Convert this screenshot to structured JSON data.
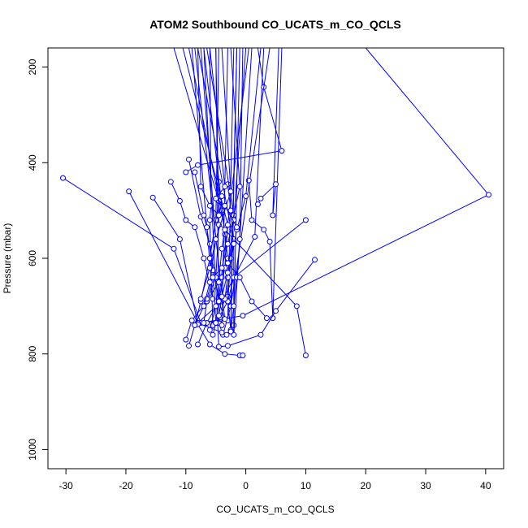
{
  "chart_data": {
    "type": "line",
    "title": "ATOM2 Southbound CO_UCATS_m_CO_QCLS",
    "xlabel": "CO_UCATS_m_CO_QCLS",
    "ylabel": "Pressure (mbar)",
    "xlim": [
      -33,
      43
    ],
    "ylim": [
      1040,
      160
    ],
    "y_reversed": true,
    "x_ticks": [
      -30,
      -20,
      -10,
      0,
      10,
      20,
      30,
      40
    ],
    "y_ticks": [
      200,
      400,
      600,
      800,
      1000
    ],
    "grid": false,
    "color": "#0000ff",
    "series": [
      {
        "values": [
          [
            -5.0,
            160
          ],
          [
            -4.5,
            735
          ],
          [
            -3.8,
            760
          ],
          [
            -2.5,
            700
          ],
          [
            -1.5,
            160
          ]
        ]
      },
      {
        "values": [
          [
            3.0,
            160
          ],
          [
            1.5,
            555
          ],
          [
            -4.0,
            690
          ],
          [
            -8.0,
            735
          ],
          [
            -3.0,
            730
          ],
          [
            -2.0,
            160
          ]
        ]
      },
      {
        "values": [
          [
            -6.0,
            160
          ],
          [
            -5.8,
            490
          ],
          [
            -6.0,
            520
          ],
          [
            -5.5,
            740
          ],
          [
            -4.0,
            740
          ],
          [
            -3.0,
            160
          ]
        ]
      },
      {
        "values": [
          [
            -30.5,
            432
          ],
          [
            -12.0,
            580
          ],
          [
            -7.5,
            735
          ],
          [
            -0.5,
            720
          ],
          [
            40.5,
            467
          ],
          [
            20.0,
            160
          ]
        ]
      },
      {
        "values": [
          [
            -19.5,
            460
          ],
          [
            -8.0,
            735
          ],
          [
            -4.0,
            755
          ],
          [
            -3.2,
            760
          ],
          [
            -2.0,
            740
          ],
          [
            -1.0,
            160
          ]
        ]
      },
      {
        "values": [
          [
            -15.5,
            473
          ],
          [
            -11.0,
            560
          ],
          [
            -8.0,
            738
          ],
          [
            -6.0,
            780
          ],
          [
            -3.5,
            800
          ],
          [
            -1.0,
            803
          ],
          [
            -0.5,
            803
          ]
        ]
      },
      {
        "values": [
          [
            -12.5,
            440
          ],
          [
            -11.0,
            480
          ],
          [
            -10.0,
            520
          ],
          [
            -8.5,
            535
          ],
          [
            -7.0,
            600
          ],
          [
            -5.5,
            685
          ],
          [
            -9.0,
            160
          ]
        ]
      },
      {
        "values": [
          [
            -10.0,
            420
          ],
          [
            -8.0,
            405
          ],
          [
            6.0,
            375
          ],
          [
            3.0,
            242
          ],
          [
            2.0,
            160
          ]
        ]
      },
      {
        "values": [
          [
            -9.5,
            393
          ],
          [
            -7.5,
            513
          ],
          [
            -6.0,
            570
          ],
          [
            -4.5,
            690
          ],
          [
            -3.5,
            727
          ],
          [
            -8.5,
            160
          ]
        ]
      },
      {
        "values": [
          [
            -8.5,
            420
          ],
          [
            -7.0,
            510
          ],
          [
            -6.5,
            535
          ],
          [
            -5.5,
            625
          ],
          [
            -5.0,
            735
          ],
          [
            0.5,
            160
          ]
        ]
      },
      {
        "values": [
          [
            -4.5,
            440
          ],
          [
            -4.0,
            500
          ],
          [
            -3.5,
            550
          ],
          [
            -3.0,
            680
          ],
          [
            -2.5,
            700
          ],
          [
            4.0,
            160
          ]
        ]
      },
      {
        "values": [
          [
            -3.0,
            445
          ],
          [
            -2.5,
            500
          ],
          [
            -2.0,
            560
          ],
          [
            -2.0,
            760
          ],
          [
            1.0,
            160
          ]
        ]
      },
      {
        "values": [
          [
            0.5,
            437
          ],
          [
            1.0,
            520
          ],
          [
            3.0,
            540
          ],
          [
            4.0,
            565
          ],
          [
            4.5,
            725
          ],
          [
            6.0,
            160
          ]
        ]
      },
      {
        "values": [
          [
            2.0,
            487
          ],
          [
            2.5,
            475
          ],
          [
            5.0,
            445
          ],
          [
            4.5,
            510
          ],
          [
            5.5,
            160
          ]
        ]
      },
      {
        "values": [
          [
            10.0,
            520
          ],
          [
            -2.0,
            640
          ],
          [
            -3.0,
            690
          ],
          [
            -2.5,
            750
          ],
          [
            -1.5,
            160
          ]
        ]
      },
      {
        "values": [
          [
            11.5,
            603
          ],
          [
            5.0,
            710
          ],
          [
            2.5,
            760
          ],
          [
            -3.0,
            783
          ],
          [
            -4.5,
            785
          ],
          [
            -7.0,
            160
          ]
        ]
      },
      {
        "values": [
          [
            10.0,
            803
          ],
          [
            8.5,
            700
          ],
          [
            -2.0,
            560
          ],
          [
            -5.0,
            520
          ],
          [
            -4.5,
            160
          ]
        ]
      },
      {
        "values": [
          [
            -10.0,
            770
          ],
          [
            -9.0,
            730
          ],
          [
            -6.5,
            690
          ],
          [
            -4.0,
            640
          ],
          [
            -3.0,
            600
          ],
          [
            -7.0,
            160
          ]
        ]
      },
      {
        "values": [
          [
            -9.5,
            783
          ],
          [
            -8.5,
            740
          ],
          [
            -7.5,
            690
          ],
          [
            -6.0,
            600
          ],
          [
            -4.5,
            480
          ],
          [
            -12.0,
            160
          ]
        ]
      },
      {
        "values": [
          [
            -8.0,
            780
          ],
          [
            -6.5,
            735
          ],
          [
            -4.5,
            690
          ],
          [
            -3.5,
            620
          ],
          [
            -3.0,
            530
          ],
          [
            -10.5,
            160
          ]
        ]
      },
      {
        "values": [
          [
            -5.5,
            760
          ],
          [
            -5.0,
            735
          ],
          [
            -3.0,
            690
          ],
          [
            -2.5,
            600
          ],
          [
            -2.0,
            510
          ],
          [
            -6.5,
            160
          ]
        ]
      },
      {
        "values": [
          [
            -6.0,
            750
          ],
          [
            -5.0,
            700
          ],
          [
            -4.5,
            650
          ],
          [
            -4.0,
            580
          ],
          [
            -3.5,
            540
          ],
          [
            -9.5,
            160
          ]
        ]
      },
      {
        "values": [
          [
            -2.5,
            753
          ],
          [
            -2.0,
            700
          ],
          [
            -1.5,
            640
          ],
          [
            -1.0,
            560
          ],
          [
            -0.5,
            160
          ]
        ]
      },
      {
        "values": [
          [
            -7.0,
            735
          ],
          [
            -6.5,
            690
          ],
          [
            -5.0,
            640
          ],
          [
            -4.5,
            530
          ],
          [
            -5.0,
            160
          ]
        ]
      },
      {
        "values": [
          [
            -6.5,
            685
          ],
          [
            -5.5,
            640
          ],
          [
            -4.0,
            620
          ],
          [
            -3.0,
            570
          ],
          [
            -1.0,
            450
          ],
          [
            -2.5,
            160
          ]
        ]
      },
      {
        "values": [
          [
            -3.5,
            685
          ],
          [
            -3.0,
            640
          ],
          [
            -1.5,
            540
          ],
          [
            0.0,
            470
          ],
          [
            2.5,
            160
          ]
        ]
      },
      {
        "values": [
          [
            -7.5,
            685
          ],
          [
            -6.0,
            620
          ],
          [
            -5.0,
            560
          ],
          [
            -2.5,
            460
          ],
          [
            -4.0,
            160
          ]
        ]
      },
      {
        "values": [
          [
            -8.5,
            740
          ],
          [
            -7.0,
            700
          ],
          [
            -6.0,
            650
          ],
          [
            -5.0,
            560
          ],
          [
            -7.5,
            160
          ]
        ]
      },
      {
        "values": [
          [
            -4.5,
            720
          ],
          [
            -4.0,
            680
          ],
          [
            -3.0,
            630
          ],
          [
            -2.0,
            520
          ],
          [
            0.0,
            160
          ]
        ]
      },
      {
        "values": [
          [
            3.5,
            725
          ],
          [
            1.0,
            690
          ],
          [
            -1.0,
            640
          ],
          [
            -3.0,
            610
          ],
          [
            -2.0,
            570
          ],
          [
            -8.0,
            160
          ]
        ]
      },
      {
        "values": [
          [
            -1.5,
            535
          ],
          [
            -3.5,
            490
          ],
          [
            -5.0,
            475
          ],
          [
            -3.5,
            450
          ],
          [
            -6.0,
            160
          ]
        ]
      },
      {
        "values": [
          [
            -4.0,
            470
          ],
          [
            -4.5,
            510
          ],
          [
            -6.0,
            490
          ],
          [
            -7.5,
            450
          ],
          [
            -8.0,
            160
          ]
        ]
      }
    ]
  }
}
